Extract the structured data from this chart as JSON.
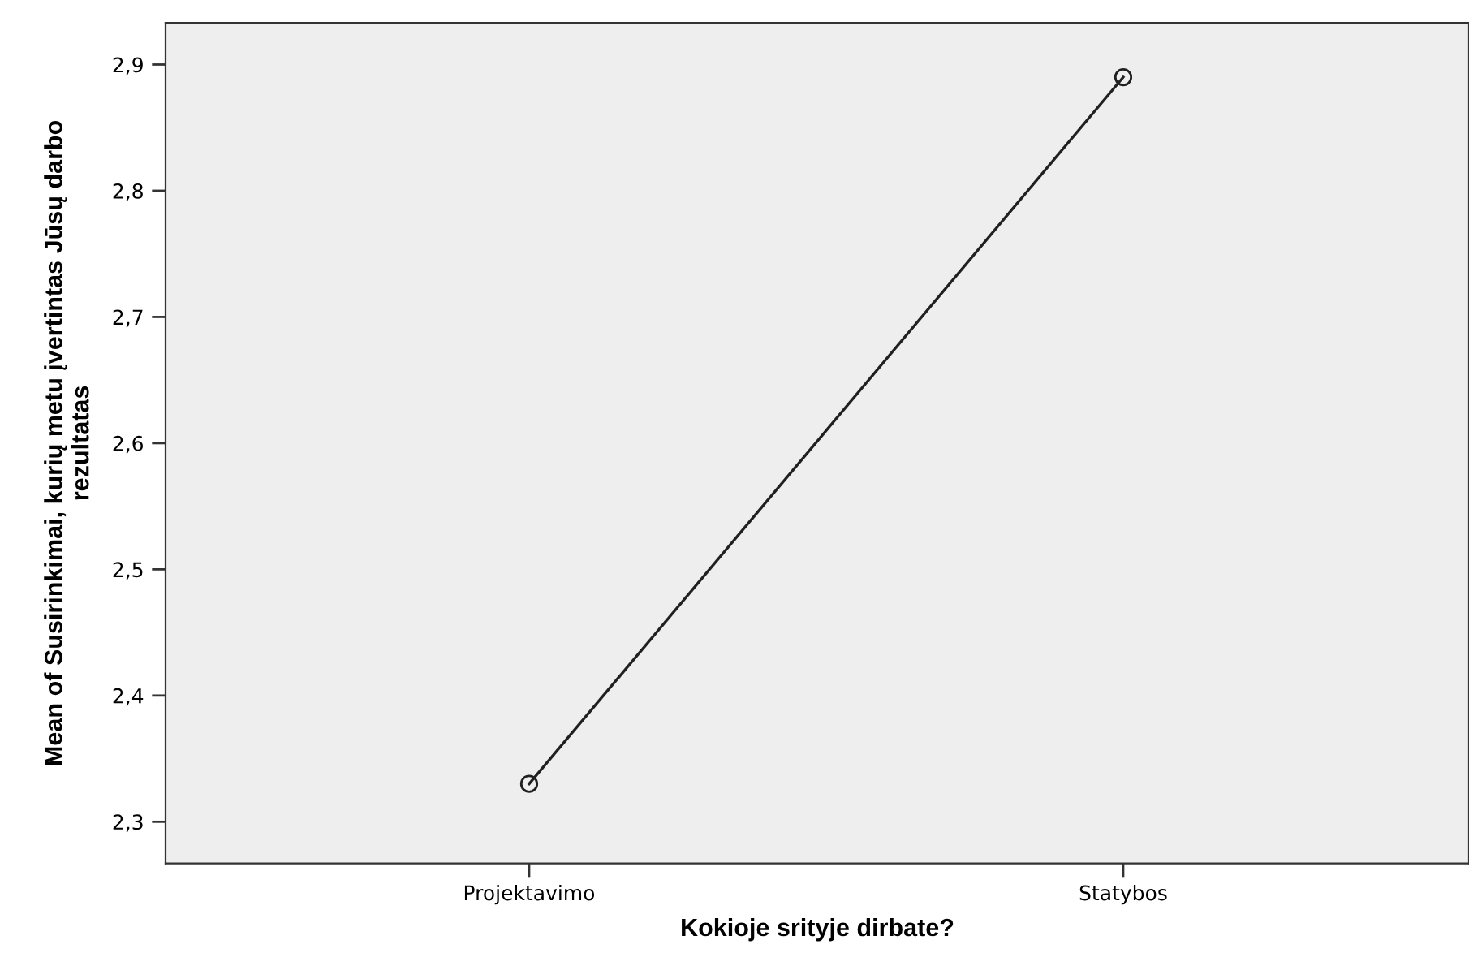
{
  "chart_data": {
    "type": "line",
    "xlabel": "Kokioje srityje dirbate?",
    "ylabel": "Mean of Susirinkimai, kurių metu įvertintas Jūsų darbo\nrezultatas",
    "categories": [
      "Projektavimo",
      "Statybos"
    ],
    "series": [
      {
        "color": "#202020",
        "values": [
          2.33,
          2.89
        ]
      }
    ],
    "marker": "circle",
    "line_style": "solid",
    "grid": false,
    "legend": false,
    "ylim": [
      2.267,
      2.933
    ],
    "yticks": [
      {
        "value": 2.3,
        "label": "2,3"
      },
      {
        "value": 2.4,
        "label": "2,4"
      },
      {
        "value": 2.5,
        "label": "2,5"
      },
      {
        "value": 2.6,
        "label": "2,6"
      },
      {
        "value": 2.7,
        "label": "2,7"
      },
      {
        "value": 2.8,
        "label": "2,8"
      },
      {
        "value": 2.9,
        "label": "2,9"
      }
    ]
  }
}
